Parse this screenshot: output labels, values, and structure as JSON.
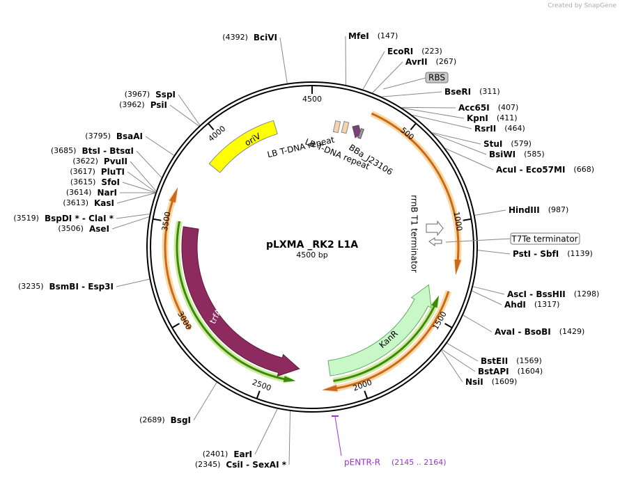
{
  "header": {
    "credit": "Created by SnapGene"
  },
  "plasmid": {
    "name": "pLXMA _RK2 L1A",
    "length": "4500 bp",
    "ticks": [
      500,
      1000,
      1500,
      2000,
      2500,
      3000,
      3500,
      4000,
      4500
    ]
  },
  "sites": [
    {
      "name": "MfeI",
      "position": "(147)"
    },
    {
      "name": "EcoRI",
      "position": "(223)"
    },
    {
      "name": "AvrII",
      "position": "(267)"
    },
    {
      "name": "BseRI",
      "position": "(311)"
    },
    {
      "name": "Acc65I",
      "position": "(407)"
    },
    {
      "name": "KpnI",
      "position": "(411)"
    },
    {
      "name": "RsrII",
      "position": "(464)"
    },
    {
      "name": "StuI",
      "position": "(579)"
    },
    {
      "name": "BsiWI",
      "position": "(585)"
    },
    {
      "name": "AcuI - Eco57MI",
      "position": "(668)"
    },
    {
      "name": "HindIII",
      "position": "(987)"
    },
    {
      "name": "PstI - SbfI",
      "position": "(1139)"
    },
    {
      "name": "AscI - BssHII",
      "position": "(1298)"
    },
    {
      "name": "AhdI",
      "position": "(1317)"
    },
    {
      "name": "AvaI - BsoBI",
      "position": "(1429)"
    },
    {
      "name": "BstEII",
      "position": "(1569)"
    },
    {
      "name": "BstAPI",
      "position": "(1604)"
    },
    {
      "name": "NsiI",
      "position": "(1609)"
    },
    {
      "name": "BciVI",
      "position": "(4392)"
    },
    {
      "name": "SspI",
      "position": "(3967)"
    },
    {
      "name": "PsiI",
      "position": "(3962)"
    },
    {
      "name": "BsaAI",
      "position": "(3795)"
    },
    {
      "name": "BtsI - BtsαI",
      "position": "(3685)"
    },
    {
      "name": "PvuII",
      "position": "(3622)"
    },
    {
      "name": "PluTI",
      "position": "(3617)"
    },
    {
      "name": "SfoI",
      "position": "(3615)"
    },
    {
      "name": "NarI",
      "position": "(3614)"
    },
    {
      "name": "KasI",
      "position": "(3613)"
    },
    {
      "name": "BspDI * - ClaI *",
      "position": "(3519)"
    },
    {
      "name": "AseI",
      "position": "(3506)"
    },
    {
      "name": "BsmBI - Esp3I",
      "position": "(3235)"
    },
    {
      "name": "BsgI",
      "position": "(2689)"
    },
    {
      "name": "EarI",
      "position": "(2401)"
    },
    {
      "name": "CsiI - SexAI *",
      "position": "(2345)"
    }
  ],
  "features": {
    "oriV": "oriV",
    "lb1": "LB T-DNA repeat",
    "lb2": "LB T-DNA repeat",
    "bba": "BBa_J23106",
    "rrnb": "rrnB T1 terminator",
    "trfa": "trfA",
    "kanr": "KanR",
    "rbs": "RBS",
    "t7te": "T7Te terminator"
  },
  "primer": {
    "name": "pENTR-R",
    "range": "(2145 .. 2164)"
  }
}
